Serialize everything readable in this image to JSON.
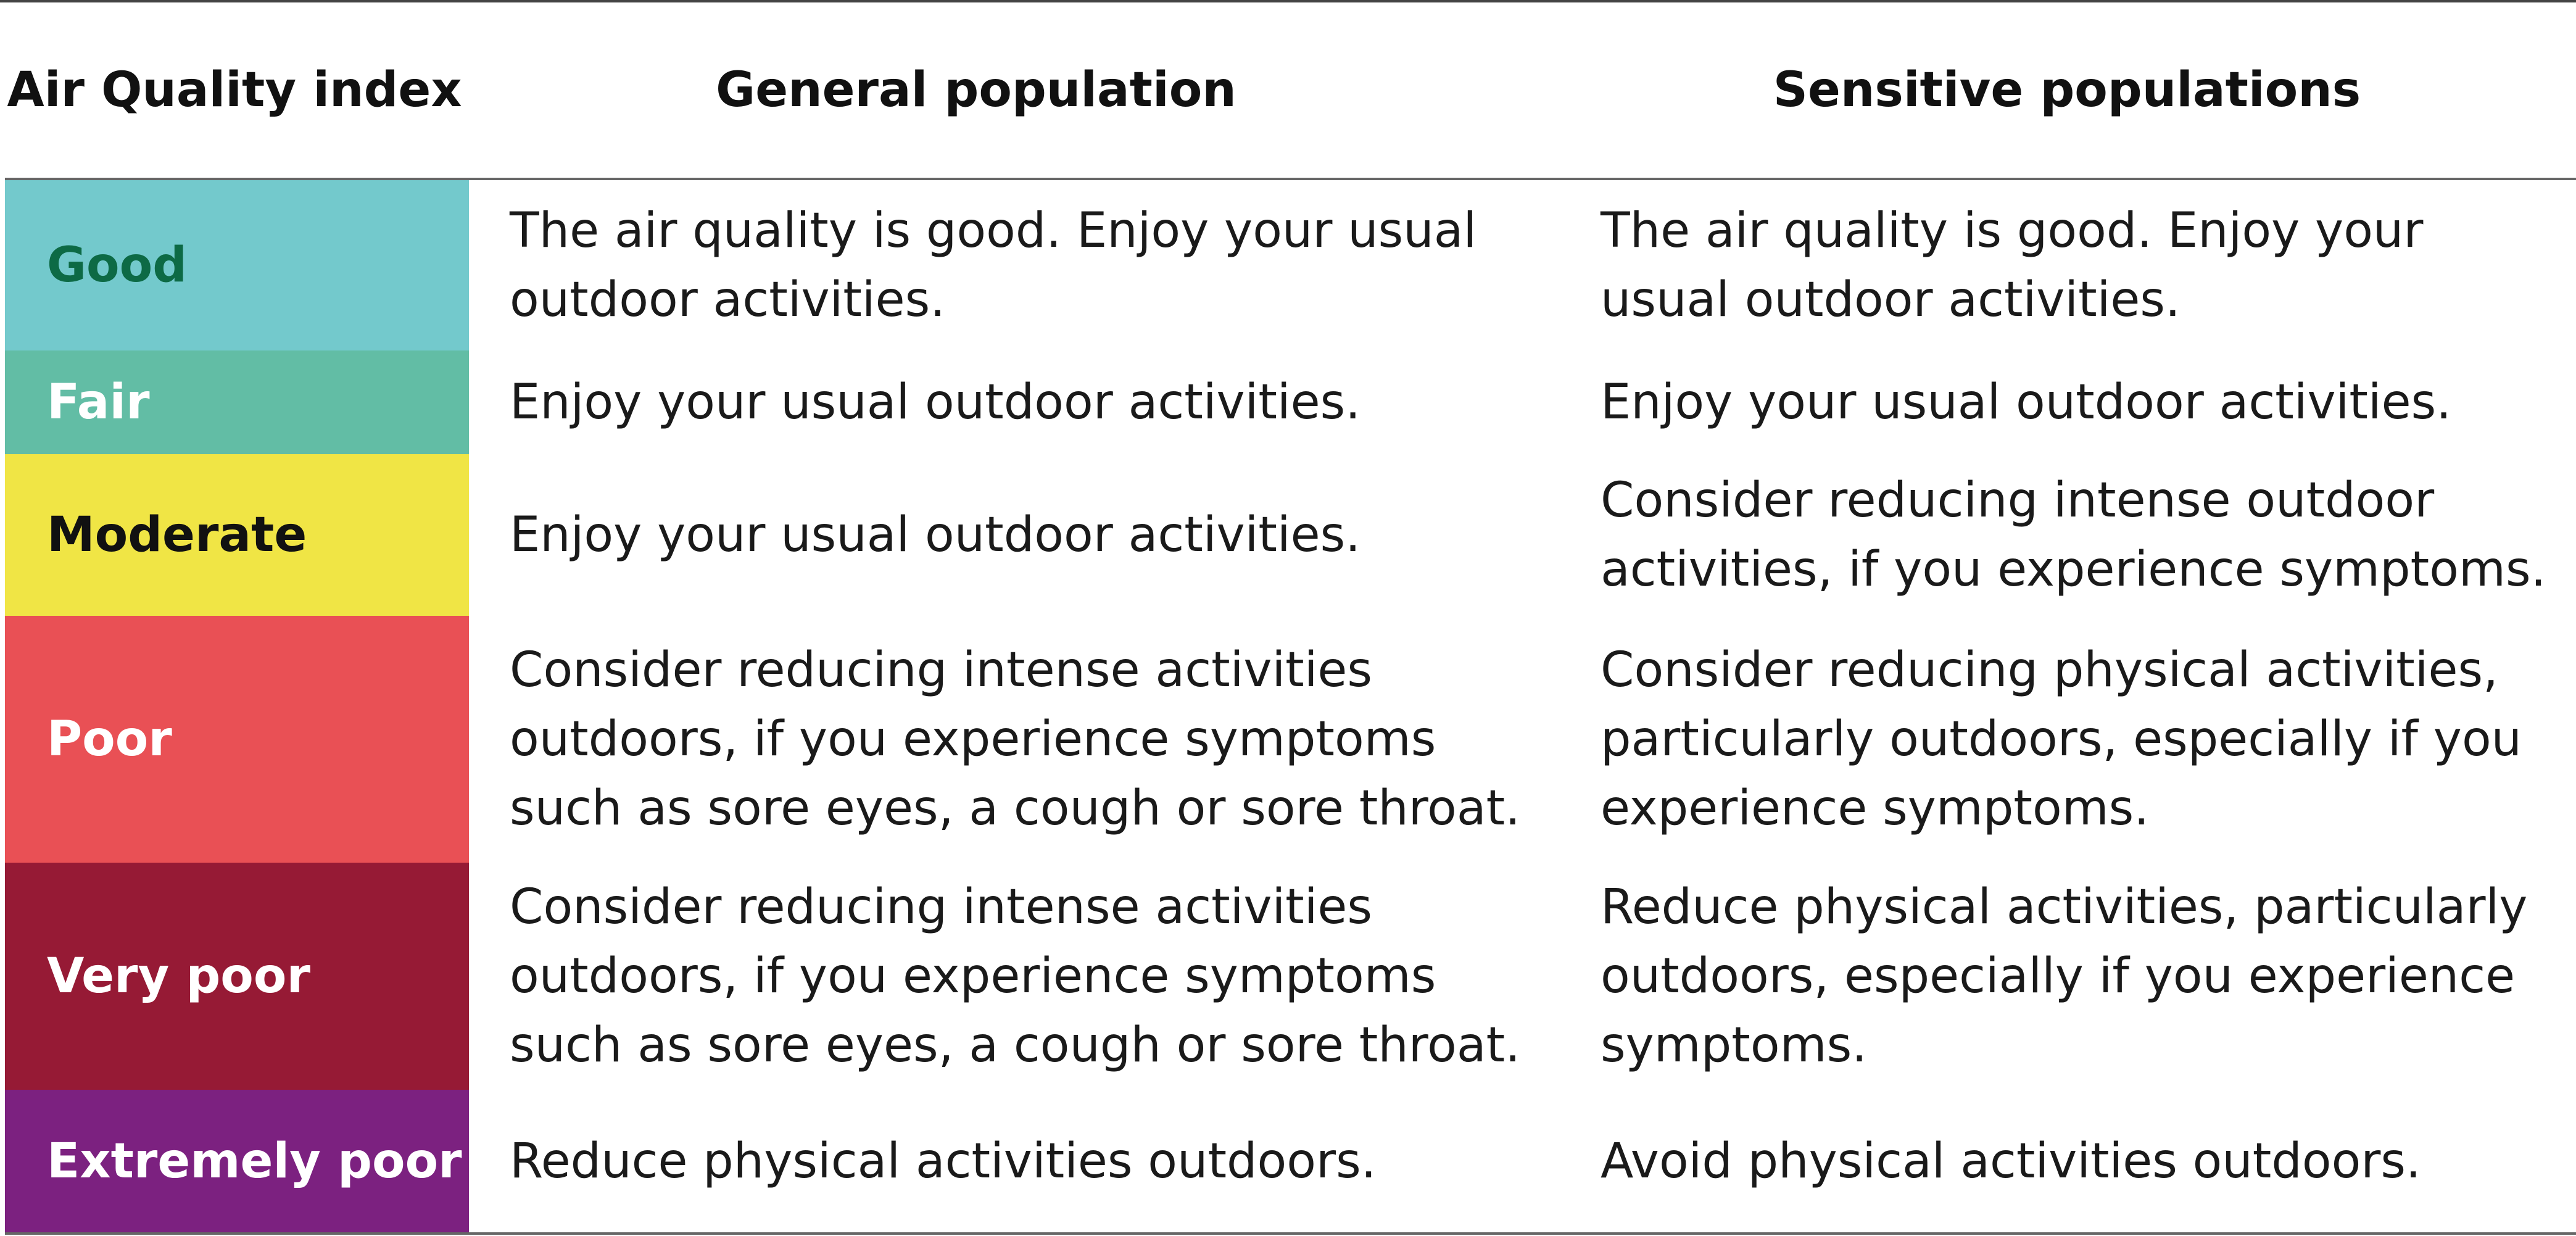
{
  "table": {
    "headers": {
      "index": "Air Quality index",
      "general": "General population",
      "sensitive": "Sensitive populations"
    },
    "rows": [
      {
        "level": "Good",
        "bg": "#73c9cc",
        "fg": "#0d6a45",
        "general": "The air quality is good. Enjoy your usual outdoor activities.",
        "sensitive": "The air quality is good. Enjoy your usual outdoor activities."
      },
      {
        "level": "Fair",
        "bg": "#62bda5",
        "fg": "#ffffff",
        "general": "Enjoy your usual outdoor activities.",
        "sensitive": "Enjoy your usual outdoor activities."
      },
      {
        "level": "Moderate",
        "bg": "#f0e545",
        "fg": "#111111",
        "general": "Enjoy your usual outdoor activities.",
        "sensitive": "Consider reducing intense outdoor activities, if you experience symptoms."
      },
      {
        "level": "Poor",
        "bg": "#e95055",
        "fg": "#ffffff",
        "general": "Consider reducing intense activities outdoors, if you experience symptoms such as sore eyes, a cough or sore throat.",
        "sensitive": "Consider reducing physical activities, particularly outdoors, especially if you experience symptoms."
      },
      {
        "level": "Very poor",
        "bg": "#961a35",
        "fg": "#ffffff",
        "general": "Consider reducing intense activities outdoors, if you experience symptoms such as sore eyes, a cough or sore throat.",
        "sensitive": "Reduce physical activities, particularly outdoors, especially if you experience symptoms."
      },
      {
        "level": "Extremely poor",
        "bg": "#7c2180",
        "fg": "#ffffff",
        "general": "Reduce physical activities outdoors.",
        "sensitive": "Avoid physical activities outdoors."
      }
    ]
  }
}
